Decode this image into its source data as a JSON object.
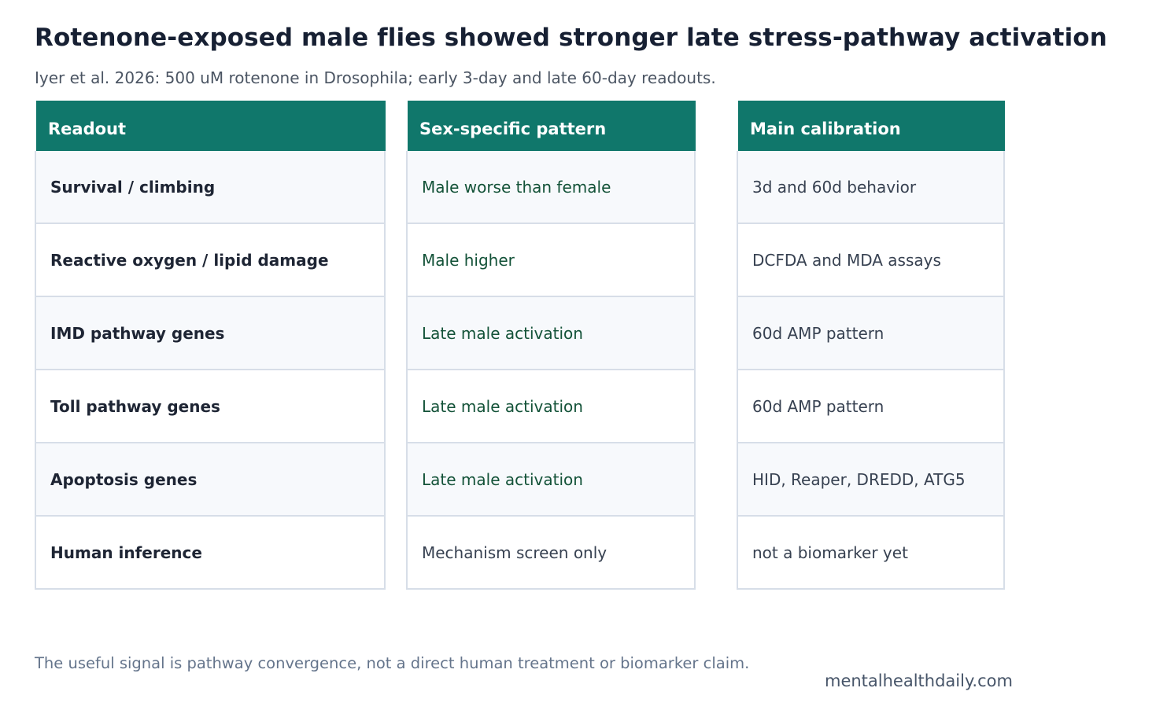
{
  "title": "Rotenone-exposed male flies showed stronger late stress-pathway activation",
  "subtitle": "Iyer et al. 2026: 500 uM rotenone in Drosophila; early 3-day and late 60-day readouts.",
  "table": {
    "headers": [
      "Readout",
      "Sex-specific pattern",
      "Main calibration"
    ],
    "rows": [
      {
        "readout": "Survival / climbing",
        "pattern": "Male worse than female",
        "calibration": "3d and 60d behavior"
      },
      {
        "readout": "Reactive oxygen / lipid damage",
        "pattern": "Male higher",
        "calibration": "DCFDA and MDA assays"
      },
      {
        "readout": "IMD pathway genes",
        "pattern": "Late male activation",
        "calibration": "60d AMP pattern"
      },
      {
        "readout": "Toll pathway genes",
        "pattern": "Late male activation",
        "calibration": "60d AMP pattern"
      },
      {
        "readout": "Apoptosis genes",
        "pattern": "Late male activation",
        "calibration": "HID, Reaper, DREDD, ATG5"
      },
      {
        "readout": "Human inference",
        "pattern": "Mechanism screen only",
        "calibration": "not a biomarker yet"
      }
    ]
  },
  "colors": {
    "header_bg": "#10776b",
    "highlight_text": "#135238"
  },
  "footnote": "The useful signal is pathway convergence, not a direct human treatment or biomarker claim.",
  "brand": "mentalhealthdaily.com"
}
